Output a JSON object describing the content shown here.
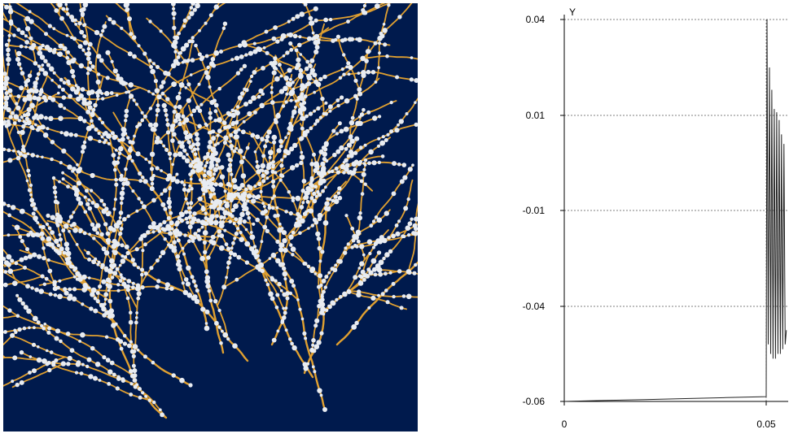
{
  "render_view": {
    "background": "#001a4d",
    "branch_color": "#e0a030",
    "node_color": "#e8ecf2",
    "icon": "neuron-morphology-render"
  },
  "chart_data": {
    "type": "line",
    "title": "",
    "xlabel": "",
    "ylabel": "Y",
    "x_ticks": [
      "0",
      "0.05"
    ],
    "y_ticks": [
      "0.04",
      "0.01",
      "-0.01",
      "-0.04",
      "-0.06"
    ],
    "grid": true,
    "y_scale": "nonlinear (ticks evenly spaced)",
    "series": [
      {
        "x": [
          0,
          0.01,
          0.02,
          0.03,
          0.04,
          0.05,
          0.0502,
          0.0505,
          0.0508,
          0.0511,
          0.0514,
          0.0517,
          0.052,
          0.0523,
          0.0526,
          0.0529,
          0.0532,
          0.0535,
          0.0538,
          0.0541,
          0.0544,
          0.0547,
          0.055
        ],
        "y": [
          -0.06,
          -0.0598,
          -0.0596,
          -0.0594,
          -0.0592,
          -0.059,
          0.04,
          -0.048,
          0.025,
          -0.05,
          0.018,
          -0.051,
          0.012,
          -0.051,
          0.011,
          -0.05,
          0.009,
          -0.05,
          0.006,
          -0.049,
          0.004,
          -0.048,
          -0.045
        ]
      }
    ]
  }
}
